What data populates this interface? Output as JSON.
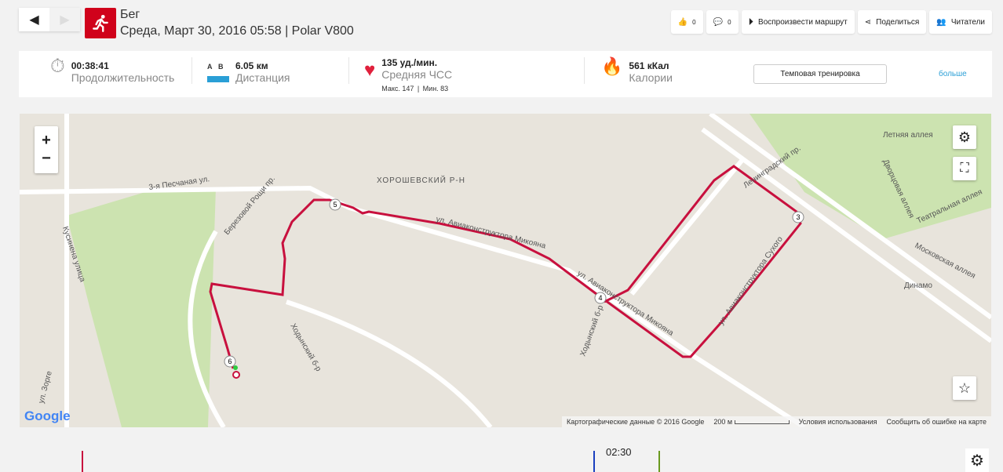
{
  "header": {
    "sport": "Бег",
    "subtitle": "Среда, Март 30, 2016 05:58 | Polar V800"
  },
  "actions": {
    "likes": "0",
    "comments": "0",
    "replay": "Воспроизвести маршрут",
    "share": "Поделиться",
    "followers": "Читатели"
  },
  "stats": {
    "duration": {
      "value": "00:38:41",
      "label": "Продолжительность"
    },
    "distance": {
      "a": "A",
      "b": "B",
      "value": "6.05 км",
      "label": "Дистанция"
    },
    "hr": {
      "value": "135 уд./мин.",
      "label": "Средняя ЧСС",
      "max": "Макс. 147",
      "min": "Мин. 83",
      "sep": "|"
    },
    "calories": {
      "value": "561 кКал",
      "label": "Калории"
    },
    "training_type": "Темповая тренировка",
    "more": "больше"
  },
  "map": {
    "zoom_in": "+",
    "zoom_out": "−",
    "labels": {
      "district": "ХОРОШЕВСКИЙ Р-Н",
      "s1": "3-я Песчаная ул.",
      "s2": "ул. Авиаконструктора Микояна",
      "s3": "ул. Авиаконструктора Микояна",
      "s4": "Ленинградский пр.",
      "s5": "Летняя аллея",
      "s6": "Дворцовая аллея",
      "s7": "Театральная аллея",
      "s8": "Московская аллея",
      "s9": "Динамо",
      "s10": "Кусинена улица",
      "s11": "Березовой Рощи пр.",
      "s12": "Ходынский б-р",
      "s13": "ул. Авиаконструктора Сухого",
      "s14": "ул. Зорге",
      "s15": "Ходынский б-р"
    },
    "markers": [
      "5",
      "4",
      "3",
      "6"
    ],
    "google": "Google",
    "attribution": "Картографические данные © 2016 Google",
    "scale": "200 м",
    "terms": "Условия использования",
    "report": "Сообщить об ошибке на карте"
  },
  "chart": {
    "time": "02:30"
  },
  "colors": {
    "route": "#c8103e",
    "brand": "#d0021b",
    "link": "#2a9fd6"
  }
}
